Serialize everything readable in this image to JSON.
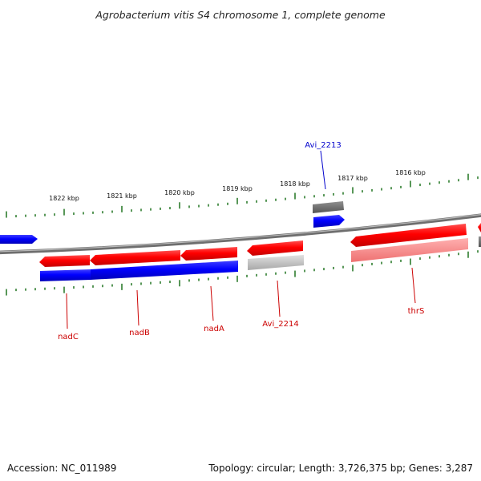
{
  "title": "Agrobacterium vitis S4 chromosome 1, complete genome",
  "colors": {
    "forward": "#ff0000",
    "reverse": "#0000ff",
    "rna_grey": "#aaaaaa",
    "backbone": "#808080",
    "tick": "#2e7d2e",
    "label_red": "#cc0000",
    "label_blue": "#0000cc"
  },
  "ruler": {
    "ticks": [
      "1822 kbp",
      "1821 kbp",
      "1820 kbp",
      "1819 kbp",
      "1818 kbp",
      "1817 kbp",
      "1816 kbp"
    ]
  },
  "gene_labels": {
    "avi_2213": "Avi_2213",
    "nadC": "nadC",
    "nadB": "nadB",
    "nadA": "nadA",
    "avi_2214": "Avi_2214",
    "thrS": "thrS"
  },
  "footer": {
    "accession": "Accession: NC_011989",
    "stats": "Topology: circular; Length: 3,726,375 bp; Genes: 3,287"
  }
}
